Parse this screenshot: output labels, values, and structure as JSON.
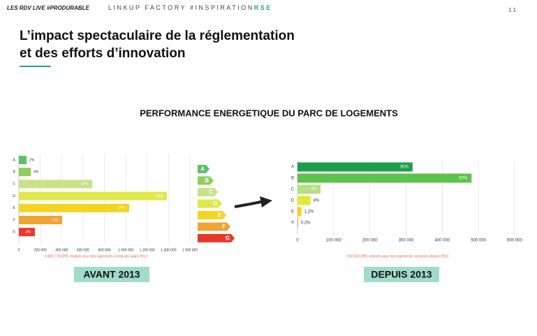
{
  "header": {
    "left": "LES RDV LIVE #PRODURABLE",
    "brand": "LINKUP FACTORY #INSPIRATION",
    "brand_accent": "RSE",
    "page": "1 1"
  },
  "slide_title": [
    "L’impact spectaculaire de la réglementation",
    "et des efforts d’innovation"
  ],
  "section_title": "PERFORMANCE ENERGETIQUE DU PARC DE LOGEMENTS",
  "energy_scale": [
    "A",
    "B",
    "C",
    "D",
    "E",
    "F",
    "G"
  ],
  "chart_data": [
    {
      "type": "bar",
      "orientation": "horizontal",
      "grid": true,
      "categories": [
        "A",
        "B",
        "C",
        "D",
        "E",
        "F",
        "G"
      ],
      "values": [
        72000,
        111000,
        686000,
        1385000,
        1032000,
        405000,
        150000
      ],
      "labels": [
        "2%",
        "3%",
        "18%",
        "35%",
        "27%",
        "11%",
        "4%"
      ],
      "colors": [
        "#5fc06a",
        "#8fce5c",
        "#c7e28a",
        "#dfe84a",
        "#f4d423",
        "#f0a431",
        "#e8382b"
      ],
      "xlim": [
        0,
        1600000
      ],
      "xticks": [
        0,
        {
          "value": 200000,
          "label": "200 000"
        },
        {
          "value": 400000,
          "label": "400 000"
        },
        {
          "value": 600000,
          "label": "600 000"
        },
        {
          "value": 800000,
          "label": "800 000"
        },
        {
          "value": 1000000,
          "label": "1 000 000"
        },
        {
          "value": 1200000,
          "label": "1 200 000"
        },
        {
          "value": 1400000,
          "label": "1 400 000"
        },
        {
          "value": 1600000,
          "label": "1 600 000"
        }
      ],
      "footnote": "3 880 776 DPE réalisés pour des logements construits avant 2013",
      "caption": "AVANT 2013"
    },
    {
      "type": "bar",
      "orientation": "horizontal",
      "grid": true,
      "categories": [
        "A",
        "B",
        "C",
        "D",
        "E",
        "F"
      ],
      "values": [
        318000,
        481000,
        64000,
        36000,
        10900,
        1800
      ],
      "labels": [
        "35%",
        "53%",
        "7%",
        "4%",
        "1,2%",
        "0,2%"
      ],
      "colors": [
        "#1e9e4c",
        "#5cc24c",
        "#b8de86",
        "#e2e936",
        "#f4d31e",
        "#f0a431"
      ],
      "xlim": [
        0,
        600000
      ],
      "xticks": [
        0,
        {
          "value": 100000,
          "label": "100 000"
        },
        {
          "value": 200000,
          "label": "200 000"
        },
        {
          "value": 300000,
          "label": "300 000"
        },
        {
          "value": 400000,
          "label": "400 000"
        },
        {
          "value": 500000,
          "label": "500 000"
        },
        {
          "value": 600000,
          "label": "600 000"
        }
      ],
      "footnote": "910 533 DPE réalisés pour des logements construits depuis 2013",
      "caption": "DEPUIS 2013"
    }
  ]
}
